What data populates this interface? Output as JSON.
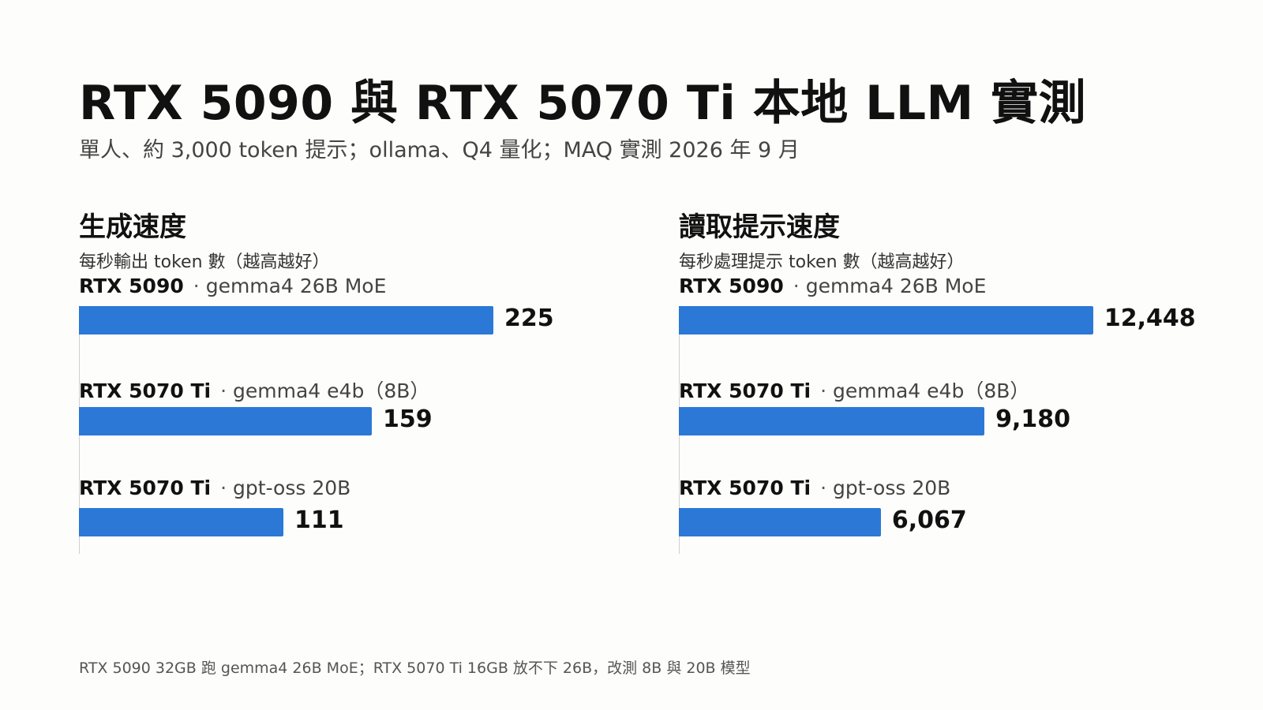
{
  "title": "RTX 5090 與 RTX 5070 Ti 本地 LLM 實測",
  "subtitle": "單人、約 3,000 token 提示；ollama、Q4 量化；MAQ 實測 2026 年 9 月",
  "footnote": "RTX 5090 32GB 跑 gemma4 26B MoE；RTX 5070 Ti 16GB 放不下 26B，改測 8B 與 20B 模型",
  "separator": "·",
  "colors": {
    "bar": "#2b78d6"
  },
  "chart_data": [
    {
      "type": "bar",
      "orientation": "horizontal",
      "title": "生成速度",
      "subtitle": "每秒輸出 token 數（越高越好）",
      "categories": [
        {
          "gpu": "RTX 5090",
          "model": "gemma4 26B MoE"
        },
        {
          "gpu": "RTX 5070 Ti",
          "model": "gemma4 e4b（8B）"
        },
        {
          "gpu": "RTX 5070 Ti",
          "model": "gpt-oss 20B"
        }
      ],
      "values": [
        225,
        159,
        111
      ],
      "value_labels": [
        "225",
        "159",
        "111"
      ],
      "xlim": [
        0,
        300
      ],
      "grid": false
    },
    {
      "type": "bar",
      "orientation": "horizontal",
      "title": "讀取提示速度",
      "subtitle": "每秒處理提示 token 數（越高越好）",
      "categories": [
        {
          "gpu": "RTX 5090",
          "model": "gemma4 26B MoE"
        },
        {
          "gpu": "RTX 5070 Ti",
          "model": "gemma4 e4b（8B）"
        },
        {
          "gpu": "RTX 5070 Ti",
          "model": "gpt-oss 20B"
        }
      ],
      "values": [
        12448,
        9180,
        6067
      ],
      "value_labels": [
        "12,448",
        "9,180",
        "6,067"
      ],
      "xlim": [
        0,
        16600
      ],
      "grid": false
    }
  ]
}
